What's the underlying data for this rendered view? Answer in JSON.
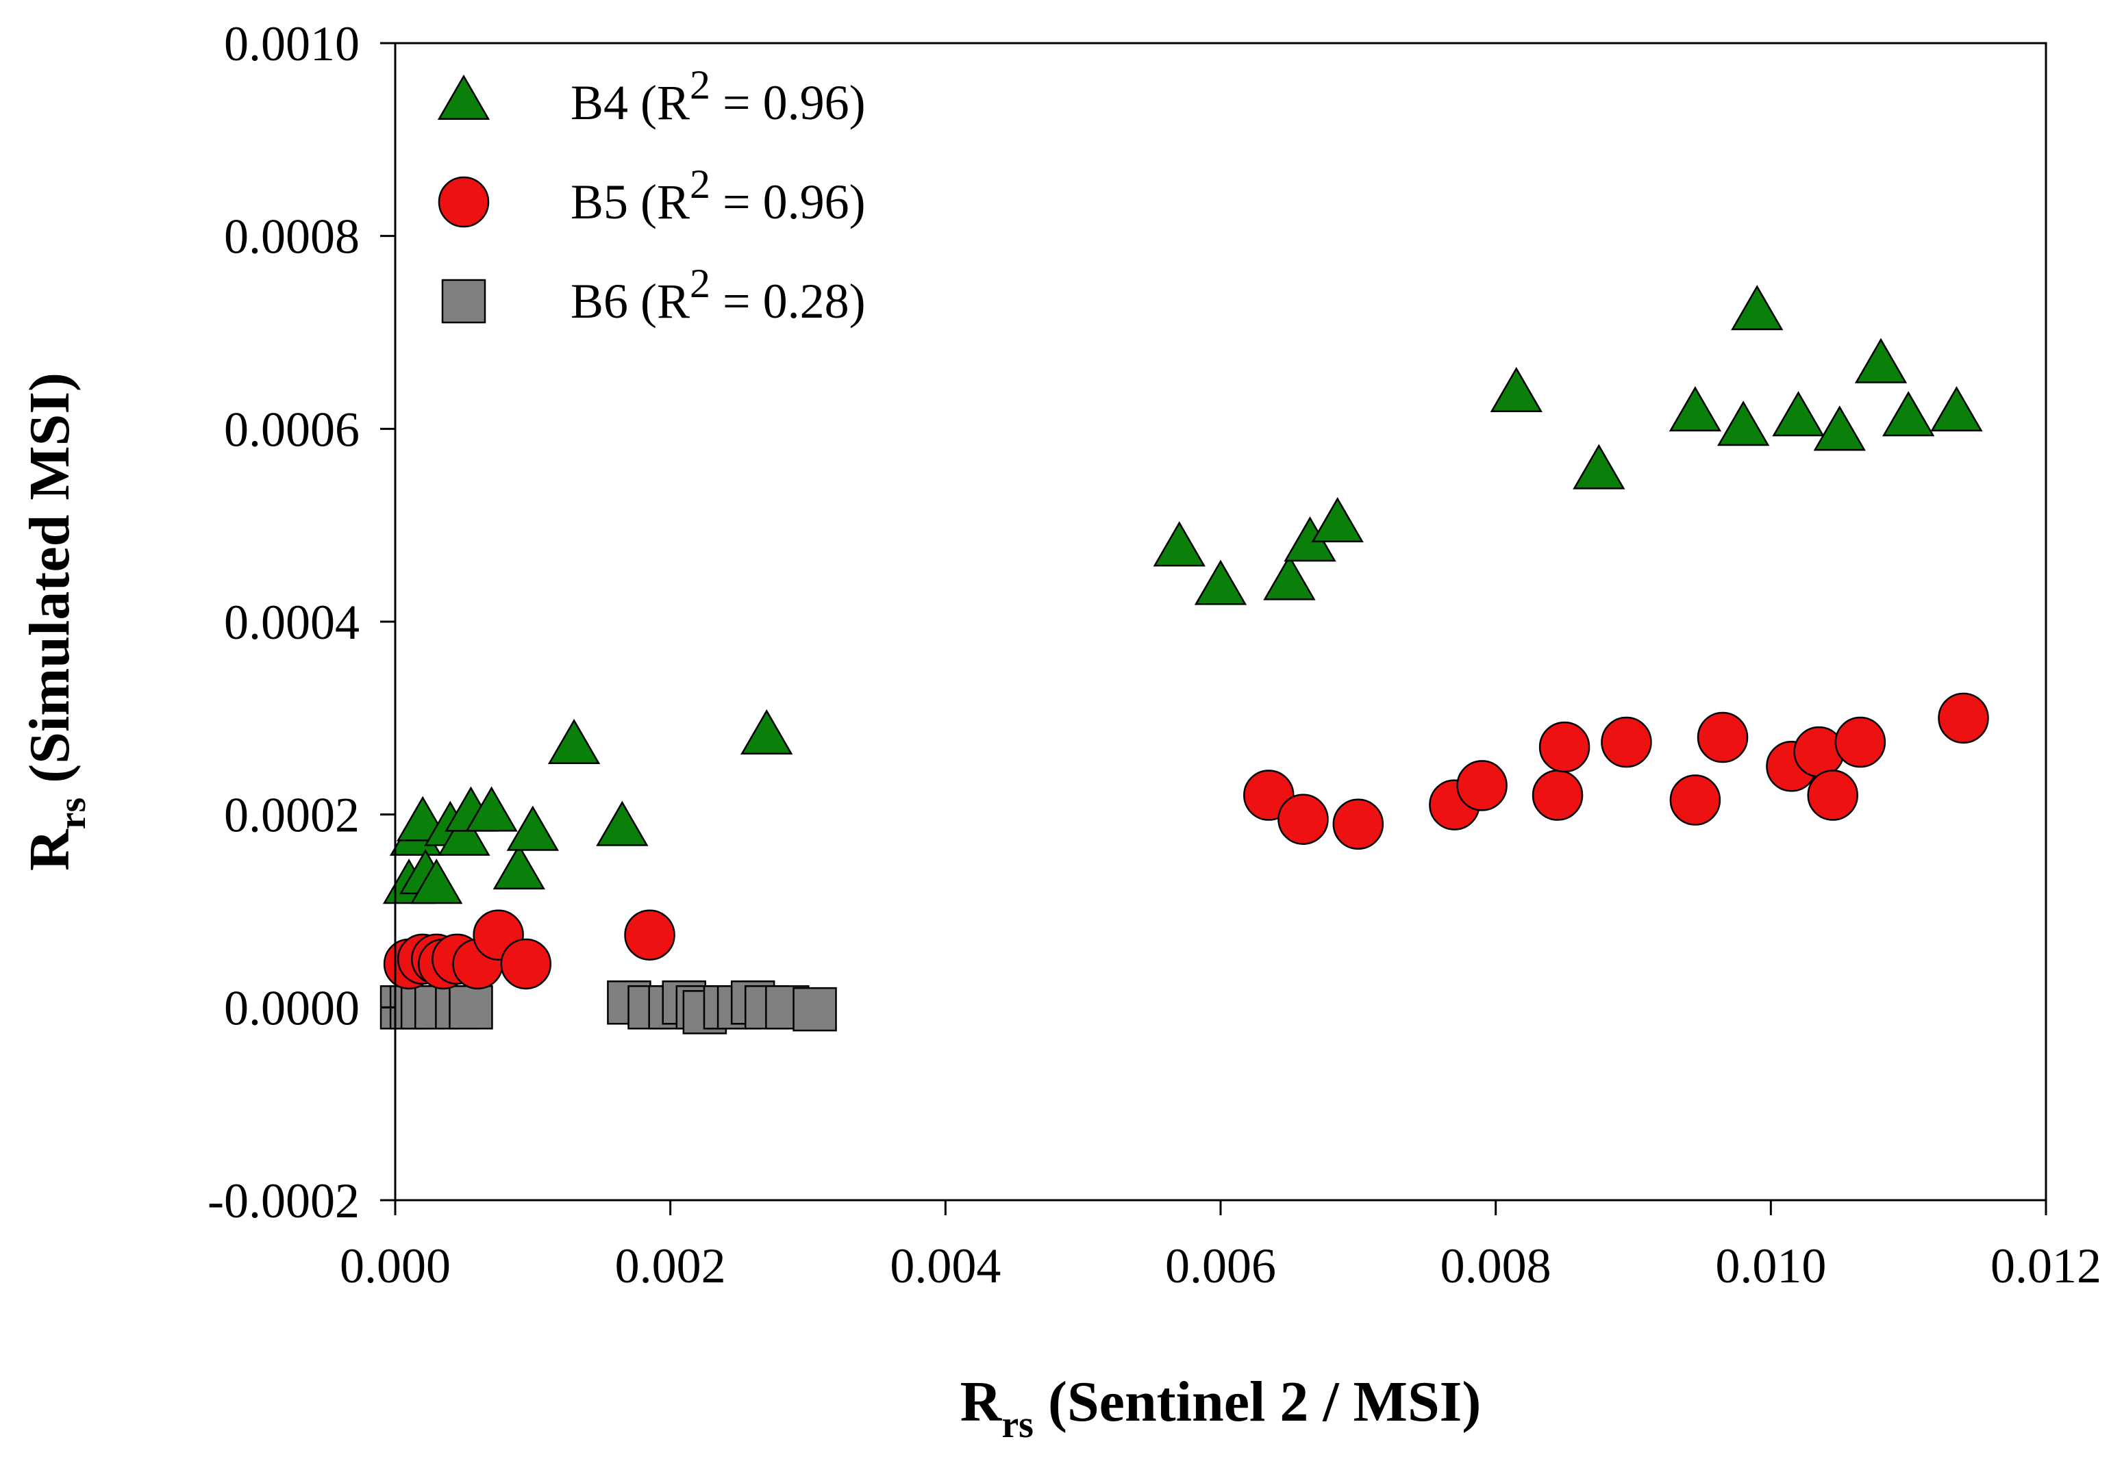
{
  "chart_data": {
    "type": "scatter",
    "xlabel": {
      "main": "R",
      "sub": "rs",
      "rest": " (Sentinel 2 / MSI)"
    },
    "ylabel": {
      "main": "R",
      "sub": "rs",
      "rest": " (Simulated MSI)"
    },
    "xlim": [
      0.0,
      0.012
    ],
    "ylim": [
      -0.0002,
      0.001
    ],
    "x_ticks": [
      "0.000",
      "0.002",
      "0.004",
      "0.006",
      "0.008",
      "0.010",
      "0.012"
    ],
    "y_ticks": [
      "-0.0002",
      "0.0000",
      "0.0002",
      "0.0004",
      "0.0006",
      "0.0008",
      "0.0010"
    ],
    "grid": false,
    "legend_position": "top-left",
    "series": [
      {
        "name": "B4",
        "r2_label": {
          "pre": "B4 (R",
          "sup": "2",
          "post": " = 0.96)"
        },
        "marker": "triangle",
        "color": "#0a7f0a",
        "points": [
          [
            0.0001,
            0.000125
          ],
          [
            0.00015,
            0.000175
          ],
          [
            0.0002,
            0.00019
          ],
          [
            0.00022,
            0.000135
          ],
          [
            0.0003,
            0.000125
          ],
          [
            0.0004,
            0.000185
          ],
          [
            0.0005,
            0.000175
          ],
          [
            0.00055,
            0.0002
          ],
          [
            0.0007,
            0.0002
          ],
          [
            0.0009,
            0.00014
          ],
          [
            0.001,
            0.00018
          ],
          [
            0.0013,
            0.00027
          ],
          [
            0.00165,
            0.000185
          ],
          [
            0.0027,
            0.00028
          ],
          [
            0.0057,
            0.000475
          ],
          [
            0.006,
            0.000435
          ],
          [
            0.0065,
            0.00044
          ],
          [
            0.00665,
            0.00048
          ],
          [
            0.00685,
            0.0005
          ],
          [
            0.00815,
            0.000635
          ],
          [
            0.00875,
            0.000555
          ],
          [
            0.00945,
            0.000615
          ],
          [
            0.0098,
            0.0006
          ],
          [
            0.0099,
            0.00072
          ],
          [
            0.0102,
            0.00061
          ],
          [
            0.0105,
            0.000595
          ],
          [
            0.0108,
            0.000665
          ],
          [
            0.011,
            0.00061
          ],
          [
            0.01135,
            0.000615
          ]
        ]
      },
      {
        "name": "B5",
        "r2_label": {
          "pre": "B5 (R",
          "sup": "2",
          "post": " = 0.96)"
        },
        "marker": "circle",
        "color": "#ee1111",
        "points": [
          [
            0.0001,
            4.5e-05
          ],
          [
            0.0002,
            5e-05
          ],
          [
            0.0003,
            5e-05
          ],
          [
            0.00035,
            4.5e-05
          ],
          [
            0.00045,
            5e-05
          ],
          [
            0.0006,
            4.5e-05
          ],
          [
            0.00075,
            7.5e-05
          ],
          [
            0.00095,
            4.5e-05
          ],
          [
            0.00185,
            7.5e-05
          ],
          [
            0.00635,
            0.00022
          ],
          [
            0.0066,
            0.000195
          ],
          [
            0.007,
            0.00019
          ],
          [
            0.0077,
            0.00021
          ],
          [
            0.0079,
            0.00023
          ],
          [
            0.00845,
            0.00022
          ],
          [
            0.0085,
            0.00027
          ],
          [
            0.00895,
            0.000275
          ],
          [
            0.00945,
            0.000215
          ],
          [
            0.00965,
            0.00028
          ],
          [
            0.01015,
            0.00025
          ],
          [
            0.01035,
            0.000265
          ],
          [
            0.01045,
            0.00022
          ],
          [
            0.01065,
            0.000275
          ],
          [
            0.0114,
            0.0003
          ]
        ]
      },
      {
        "name": "B6",
        "r2_label": {
          "pre": "B6 (R",
          "sup": "2",
          "post": " = 0.28)"
        },
        "marker": "square",
        "color": "#808080",
        "points": [
          [
            5e-05,
            0.0
          ],
          [
            0.00012,
            0.0
          ],
          [
            0.0002,
            0.0
          ],
          [
            0.0003,
            0.0
          ],
          [
            0.00045,
            0.0
          ],
          [
            0.00055,
            0.0
          ],
          [
            0.0017,
            5e-06
          ],
          [
            0.00185,
            0.0
          ],
          [
            0.002,
            0.0
          ],
          [
            0.0021,
            5e-06
          ],
          [
            0.0022,
            0.0
          ],
          [
            0.00225,
            -5e-06
          ],
          [
            0.0024,
            0.0
          ],
          [
            0.0025,
            0.0
          ],
          [
            0.0026,
            5e-06
          ],
          [
            0.0027,
            0.0
          ],
          [
            0.00285,
            0.0
          ],
          [
            0.00305,
            -2e-06
          ]
        ]
      }
    ]
  }
}
